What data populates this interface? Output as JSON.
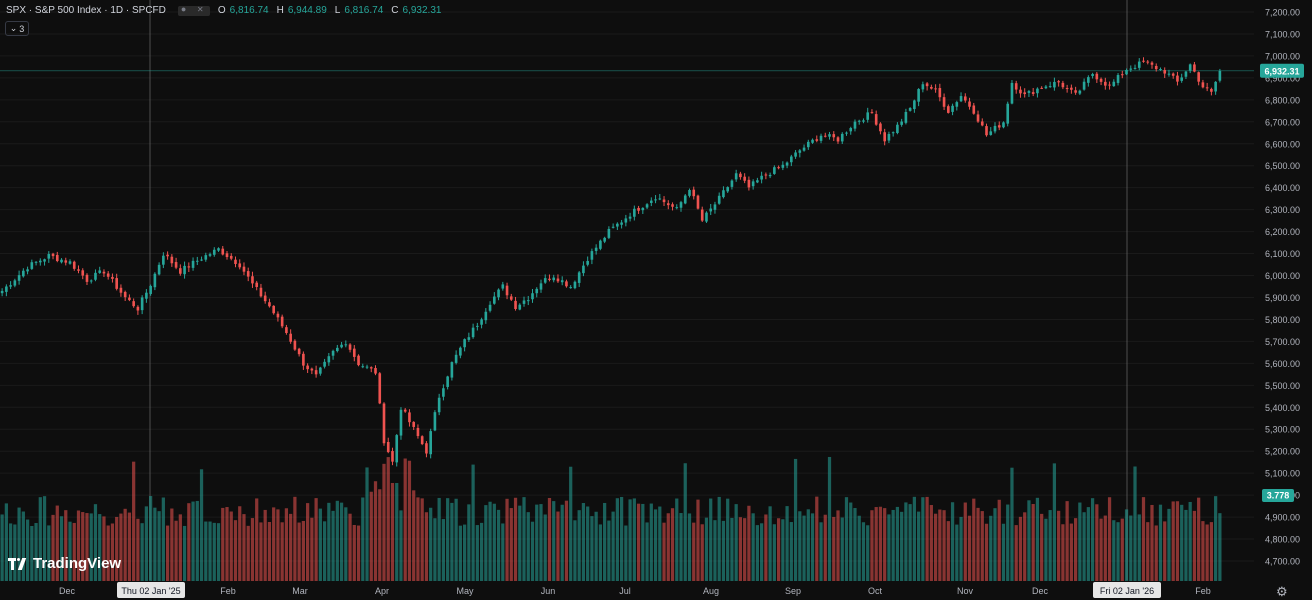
{
  "header": {
    "symbol": "SPX · S&P 500 Index · 1D · SPCFD",
    "open_label": "O",
    "open": "6,816.74",
    "high_label": "H",
    "high": "6,944.89",
    "low_label": "L",
    "low": "6,816.74",
    "close_label": "C",
    "close": "6,932.31",
    "indicator_count": "3"
  },
  "brand": "TradingView",
  "icons": [
    "eye-icon",
    "close-icon",
    "chevron-down-icon",
    "settings-icon"
  ],
  "colors": {
    "up": "#26a69a",
    "down": "#ef5350",
    "background": "#0e0e0e"
  },
  "chart_data": {
    "type": "candlestick",
    "title": "",
    "price_axis_ticks": [
      "7,200.00",
      "7,100.00",
      "7,000.00",
      "6,900.00",
      "6,800.00",
      "6,700.00",
      "6,600.00",
      "6,500.00",
      "6,400.00",
      "6,300.00",
      "6,200.00",
      "6,100.00",
      "6,000.00",
      "5,900.00",
      "5,800.00",
      "5,700.00",
      "5,600.00",
      "5,500.00",
      "5,400.00",
      "5,300.00",
      "5,200.00",
      "5,100.00",
      "5,000.00",
      "4,900.00",
      "4,800.00",
      "4,700.00"
    ],
    "price_axis_values": [
      7200,
      7100,
      7000,
      6900,
      6800,
      6700,
      6600,
      6500,
      6400,
      6300,
      6200,
      6100,
      6000,
      5900,
      5800,
      5700,
      5600,
      5500,
      5400,
      5300,
      5200,
      5100,
      5000,
      4900,
      4800,
      4700
    ],
    "ylim": [
      4650,
      7250
    ],
    "time_axis_labels": [
      "Dec",
      "Thu 02 Jan '25",
      "Feb",
      "Mar",
      "Apr",
      "May",
      "Jun",
      "Jul",
      "Aug",
      "Sep",
      "Oct",
      "Nov",
      "Dec",
      "Fri 02 Jan '26",
      "Feb"
    ],
    "crosshair_dates": [
      "Thu 02 Jan '25",
      "Fri 02 Jan '26"
    ],
    "last_price_label": "6,932.31",
    "last_price": 6932.31,
    "volume_label": "3.778",
    "price_anchors": [
      [
        0,
        5930
      ],
      [
        6,
        6040
      ],
      [
        11,
        6090
      ],
      [
        16,
        6060
      ],
      [
        20,
        5980
      ],
      [
        24,
        6020
      ],
      [
        29,
        5900
      ],
      [
        32,
        5850
      ],
      [
        35,
        5960
      ],
      [
        38,
        6100
      ],
      [
        42,
        6020
      ],
      [
        47,
        6080
      ],
      [
        51,
        6120
      ],
      [
        56,
        6050
      ],
      [
        59,
        5960
      ],
      [
        63,
        5860
      ],
      [
        67,
        5740
      ],
      [
        71,
        5600
      ],
      [
        74,
        5540
      ],
      [
        78,
        5650
      ],
      [
        81,
        5700
      ],
      [
        84,
        5600
      ],
      [
        88,
        5560
      ],
      [
        90,
        5250
      ],
      [
        92,
        5150
      ],
      [
        94,
        5400
      ],
      [
        97,
        5300
      ],
      [
        100,
        5200
      ],
      [
        103,
        5450
      ],
      [
        106,
        5600
      ],
      [
        109,
        5700
      ],
      [
        112,
        5780
      ],
      [
        115,
        5880
      ],
      [
        118,
        5950
      ],
      [
        121,
        5860
      ],
      [
        124,
        5900
      ],
      [
        127,
        5970
      ],
      [
        130,
        6000
      ],
      [
        134,
        5950
      ],
      [
        138,
        6080
      ],
      [
        143,
        6200
      ],
      [
        148,
        6280
      ],
      [
        154,
        6360
      ],
      [
        159,
        6300
      ],
      [
        162,
        6400
      ],
      [
        165,
        6250
      ],
      [
        169,
        6350
      ],
      [
        173,
        6460
      ],
      [
        176,
        6400
      ],
      [
        180,
        6460
      ],
      [
        184,
        6500
      ],
      [
        188,
        6570
      ],
      [
        193,
        6640
      ],
      [
        197,
        6620
      ],
      [
        201,
        6700
      ],
      [
        205,
        6740
      ],
      [
        208,
        6620
      ],
      [
        211,
        6680
      ],
      [
        214,
        6760
      ],
      [
        217,
        6880
      ],
      [
        220,
        6840
      ],
      [
        223,
        6750
      ],
      [
        226,
        6820
      ],
      [
        229,
        6750
      ],
      [
        232,
        6640
      ],
      [
        236,
        6700
      ],
      [
        238,
        6880
      ],
      [
        241,
        6820
      ],
      [
        245,
        6860
      ],
      [
        249,
        6880
      ],
      [
        253,
        6820
      ],
      [
        257,
        6920
      ],
      [
        261,
        6860
      ],
      [
        265,
        6940
      ],
      [
        269,
        6970
      ],
      [
        274,
        6930
      ],
      [
        277,
        6880
      ],
      [
        280,
        6960
      ],
      [
        283,
        6860
      ],
      [
        285,
        6830
      ],
      [
        287,
        6932
      ]
    ],
    "candle_count": 288,
    "volume_scale_note": ""
  }
}
